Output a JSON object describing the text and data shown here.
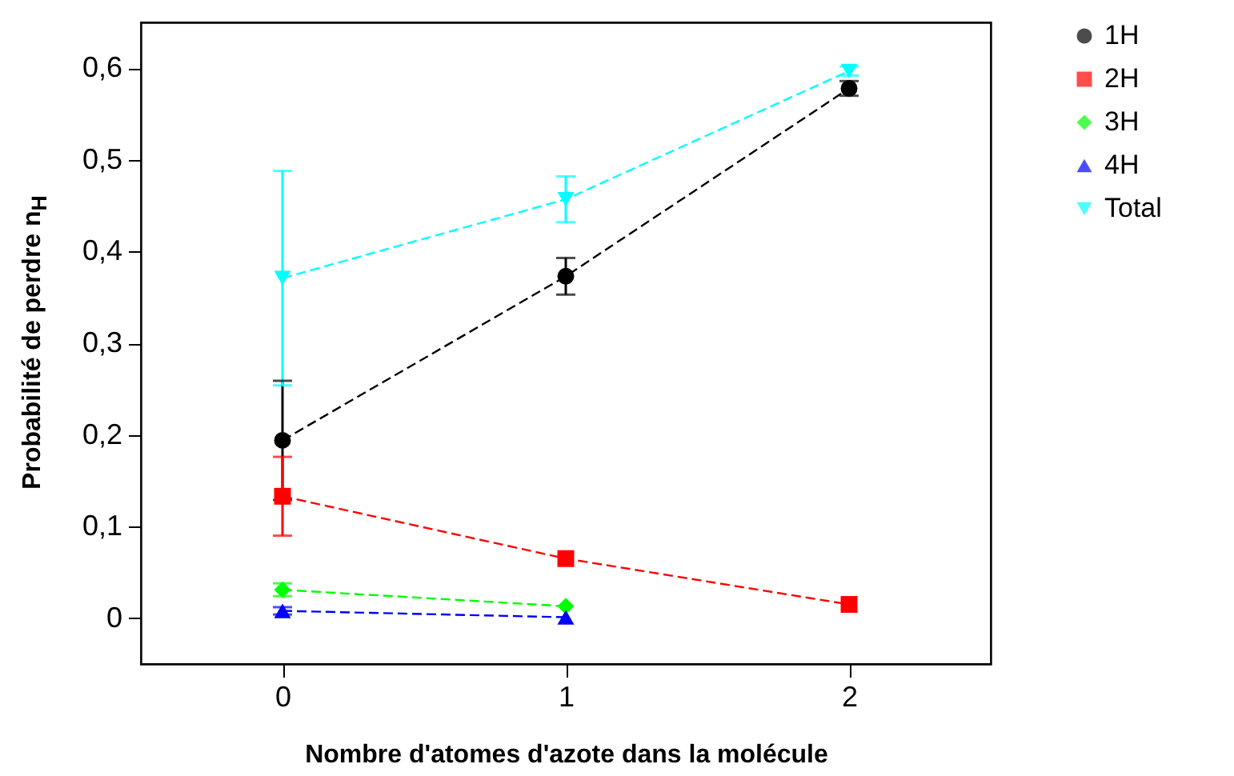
{
  "chart_data": {
    "type": "line",
    "xlabel": "Nombre d'atomes d'azote dans la molécule",
    "ylabel": "Probabilité de perdre n$_{H}$",
    "x": [
      0,
      1,
      2
    ],
    "xlim": [
      -0.5,
      2.5
    ],
    "xticks": [
      0,
      1,
      2
    ],
    "ylim": [
      -0.05,
      0.65
    ],
    "yticks": [
      {
        "value": 0,
        "label": "0"
      },
      {
        "value": 0.1,
        "label": "0,1"
      },
      {
        "value": 0.2,
        "label": "0,2"
      },
      {
        "value": 0.3,
        "label": "0,3"
      },
      {
        "value": 0.4,
        "label": "0,4"
      },
      {
        "value": 0.5,
        "label": "0,5"
      },
      {
        "value": 0.6,
        "label": "0,6"
      }
    ],
    "series": [
      {
        "name": "1H",
        "color": "#000000",
        "marker": "circle",
        "values": [
          0.194,
          0.373,
          0.578
        ],
        "errors": [
          0.065,
          0.02,
          0.008
        ]
      },
      {
        "name": "2H",
        "color": "#ff0000",
        "marker": "square",
        "values": [
          0.133,
          0.065,
          0.015
        ],
        "errors": [
          0.043,
          null,
          null
        ]
      },
      {
        "name": "3H",
        "color": "#00ff00",
        "marker": "diamond",
        "values": [
          0.031,
          0.013,
          null
        ],
        "errors": [
          0.007,
          null,
          null
        ]
      },
      {
        "name": "4H",
        "color": "#0000ff",
        "marker": "triangle",
        "values": [
          0.008,
          0.001,
          null
        ],
        "errors": [
          0.004,
          null,
          null
        ]
      },
      {
        "name": "Total",
        "color": "#00ffff",
        "marker": "triangle-down",
        "values": [
          0.371,
          0.457,
          0.597
        ],
        "errors": [
          0.117,
          0.025,
          0.005
        ]
      }
    ],
    "line_style": "dashed",
    "grid": false,
    "legend": "right"
  }
}
